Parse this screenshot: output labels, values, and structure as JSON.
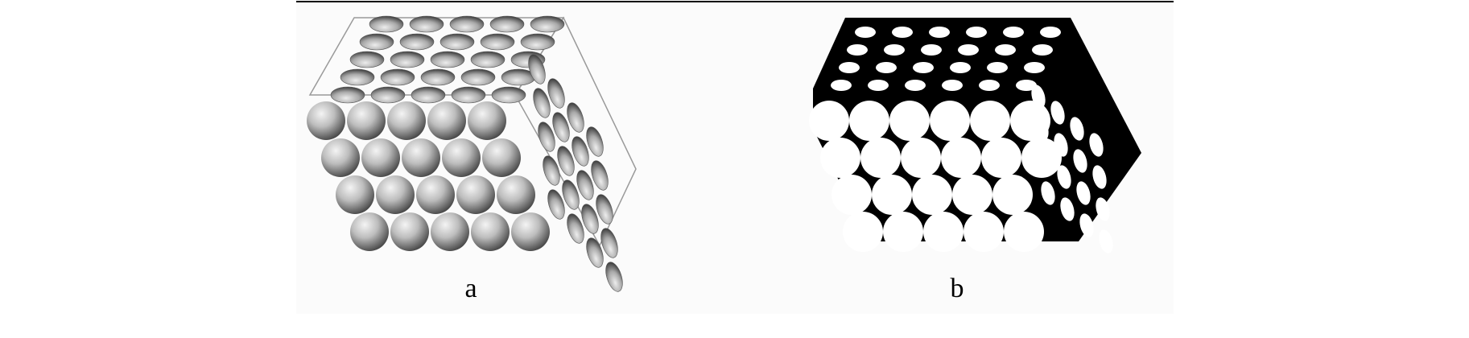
{
  "colors": {
    "background": "#ffffff",
    "panel": "#fbfbfb",
    "rule": "#000000",
    "sphere_light": "#f4f4f4",
    "sphere_dark": "#3a3a3a",
    "ink": "#000000",
    "hole": "#ffffff"
  },
  "panels": [
    {
      "caption": "a",
      "style": "shaded-spheres"
    },
    {
      "caption": "b",
      "style": "black-and-white-silhouette"
    }
  ],
  "lattice": {
    "columns": 5,
    "rows": 5,
    "layers": 4
  }
}
